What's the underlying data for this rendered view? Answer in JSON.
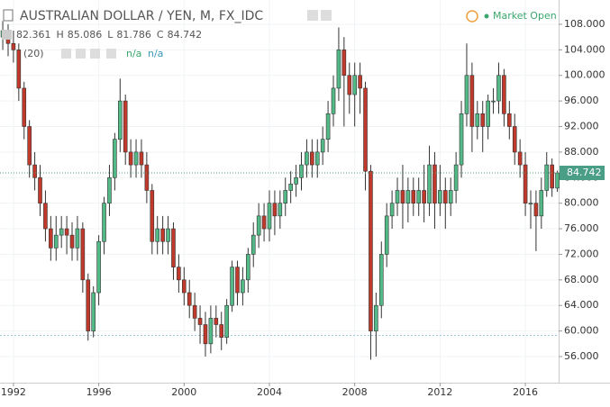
{
  "header": {
    "title": "AUSTRALIAN DOLLAR / YEN, M, FX_IDC",
    "status": "Market Open",
    "ohlc": [
      {
        "value": 82.361
      },
      {
        "label": "H",
        "value": 85.086
      },
      {
        "label": "L",
        "value": 81.786
      },
      {
        "label": "C",
        "value": 84.742
      }
    ],
    "indicator": {
      "params": "(20)",
      "values": [
        "n/a",
        "n/a"
      ]
    }
  },
  "chart_data": {
    "type": "candlestick",
    "x": [
      1991.5,
      1991.75,
      1992,
      1992.25,
      1992.5,
      1992.75,
      1993,
      1993.25,
      1993.5,
      1993.75,
      1994,
      1994.25,
      1994.5,
      1994.75,
      1995,
      1995.25,
      1995.5,
      1995.75,
      1996,
      1996.25,
      1996.5,
      1996.75,
      1997,
      1997.25,
      1997.5,
      1997.75,
      1998,
      1998.25,
      1998.5,
      1998.75,
      1999,
      1999.25,
      1999.5,
      1999.75,
      2000,
      2000.25,
      2000.5,
      2000.75,
      2001,
      2001.25,
      2001.5,
      2001.75,
      2002,
      2002.25,
      2002.5,
      2002.75,
      2003,
      2003.25,
      2003.5,
      2003.75,
      2004,
      2004.25,
      2004.5,
      2004.75,
      2005,
      2005.25,
      2005.5,
      2005.75,
      2006,
      2006.25,
      2006.5,
      2006.75,
      2007,
      2007.25,
      2007.5,
      2007.75,
      2008,
      2008.25,
      2008.5,
      2008.75,
      2009,
      2009.25,
      2009.5,
      2009.75,
      2010,
      2010.25,
      2010.5,
      2010.75,
      2011,
      2011.25,
      2011.5,
      2011.75,
      2012,
      2012.25,
      2012.5,
      2012.75,
      2013,
      2013.25,
      2013.5,
      2013.75,
      2014,
      2014.25,
      2014.5,
      2014.75,
      2015,
      2015.25,
      2015.5,
      2015.75,
      2016,
      2016.25,
      2016.5,
      2016.75,
      2017,
      2017.25,
      2017.5
    ],
    "open": [
      106,
      107,
      105,
      104,
      98,
      92,
      86,
      84,
      80,
      76,
      73,
      75,
      76,
      75,
      73,
      76,
      68,
      60,
      66,
      74,
      80,
      84,
      90,
      96,
      88,
      86,
      88,
      86,
      82,
      74,
      76,
      74,
      76,
      70,
      68,
      66,
      64,
      62,
      61,
      58,
      62,
      61,
      59,
      64,
      70,
      66,
      68,
      72,
      75,
      78,
      76,
      80,
      78,
      80,
      82,
      83,
      84,
      86,
      88,
      86,
      88,
      90,
      94,
      98,
      104,
      100,
      97,
      100,
      98,
      85,
      60,
      64,
      72,
      78,
      80,
      82,
      80,
      82,
      80,
      82,
      80,
      86,
      80,
      82,
      80,
      82,
      86,
      94,
      100,
      92,
      94,
      92,
      96,
      96,
      100,
      94,
      92,
      88,
      86,
      80,
      80,
      78,
      82,
      86,
      82.361
    ],
    "high": [
      108.5,
      108,
      107,
      105,
      99,
      93,
      88,
      86,
      82,
      78,
      78,
      78,
      78,
      77,
      78,
      77,
      69,
      67,
      75,
      81,
      86,
      91,
      99.5,
      97,
      90,
      90,
      90,
      88,
      83,
      78,
      78,
      78,
      77,
      72,
      70,
      68,
      66,
      64,
      63,
      64,
      64,
      63,
      65,
      71,
      71,
      70,
      73,
      77,
      80,
      80,
      82,
      82,
      82,
      84,
      85,
      86,
      88,
      90,
      90,
      90,
      92,
      96,
      100,
      107.5,
      106,
      102,
      102,
      102,
      99,
      86,
      66,
      74,
      80,
      82,
      84,
      86,
      84,
      84,
      84,
      86,
      89,
      88,
      86,
      84,
      84,
      88,
      96,
      105,
      102,
      96,
      96,
      97,
      98,
      102,
      101,
      96,
      94,
      90,
      88,
      82,
      82,
      84,
      88,
      87,
      85.086
    ],
    "low": [
      104,
      103,
      102,
      96,
      90,
      84,
      82,
      78,
      74,
      71,
      71,
      73,
      72,
      71,
      71,
      66,
      58.5,
      59,
      64,
      72,
      78,
      82,
      88,
      86,
      84,
      84,
      84,
      80,
      72,
      72,
      72,
      72,
      68,
      66,
      64,
      62,
      60,
      58,
      56,
      56.5,
      59,
      57,
      58,
      63,
      64,
      64,
      66,
      70,
      73,
      74,
      74,
      75,
      76,
      78,
      80,
      81,
      82,
      84,
      84,
      84,
      86,
      88,
      92,
      96,
      92,
      94,
      92,
      94,
      82,
      55.5,
      56,
      62,
      70,
      76,
      78,
      76,
      77,
      78,
      78,
      77,
      78,
      76,
      78,
      76,
      78,
      80,
      84,
      92,
      88,
      90,
      88,
      90,
      94,
      94,
      92,
      90,
      86,
      84,
      78,
      76,
      72.5,
      76,
      81,
      81,
      81.786
    ],
    "close": [
      107,
      105,
      104,
      98,
      92,
      86,
      84,
      80,
      76,
      73,
      75,
      76,
      75,
      73,
      76,
      68,
      60,
      66,
      74,
      80,
      84,
      90,
      96,
      88,
      86,
      88,
      86,
      82,
      74,
      76,
      74,
      76,
      70,
      68,
      66,
      64,
      62,
      61,
      58,
      62,
      61,
      59,
      64,
      70,
      66,
      68,
      72,
      75,
      78,
      76,
      80,
      78,
      80,
      82,
      83,
      84,
      86,
      88,
      86,
      88,
      90,
      94,
      98,
      104,
      100,
      97,
      100,
      98,
      85,
      60,
      64,
      72,
      78,
      80,
      82,
      80,
      82,
      80,
      82,
      80,
      86,
      80,
      82,
      80,
      82,
      86,
      94,
      100,
      92,
      94,
      92,
      96,
      96,
      100,
      94,
      92,
      88,
      86,
      80,
      80,
      78,
      82,
      86,
      82.361,
      84.742
    ],
    "up_color": "#53b987",
    "down_color": "#c0392b",
    "xlim": [
      1991.37,
      2017.56
    ],
    "xticks": [
      1992,
      1996,
      2000,
      2004,
      2008,
      2012,
      2016
    ],
    "ylim": [
      51.91,
      111.8
    ],
    "yticks": [
      {
        "value": 56,
        "label": "56.000"
      },
      {
        "value": 60,
        "label": "60.000"
      },
      {
        "value": 64,
        "label": "64.000"
      },
      {
        "value": 68,
        "label": "68.000"
      },
      {
        "value": 72,
        "label": "72.000"
      },
      {
        "value": 76,
        "label": "76.000"
      },
      {
        "value": 80,
        "label": "80.000"
      },
      {
        "value": 84,
        "label": "84.000"
      },
      {
        "value": 88,
        "label": "88.000"
      },
      {
        "value": 92,
        "label": "92.000"
      },
      {
        "value": 96,
        "label": "96.000"
      },
      {
        "value": 100,
        "label": "100.000"
      },
      {
        "value": 104,
        "label": "104.000"
      },
      {
        "value": 108,
        "label": "108.000"
      }
    ],
    "last_price": 84.742,
    "last_price_color": "#4a9e86",
    "hline": 59.3
  }
}
